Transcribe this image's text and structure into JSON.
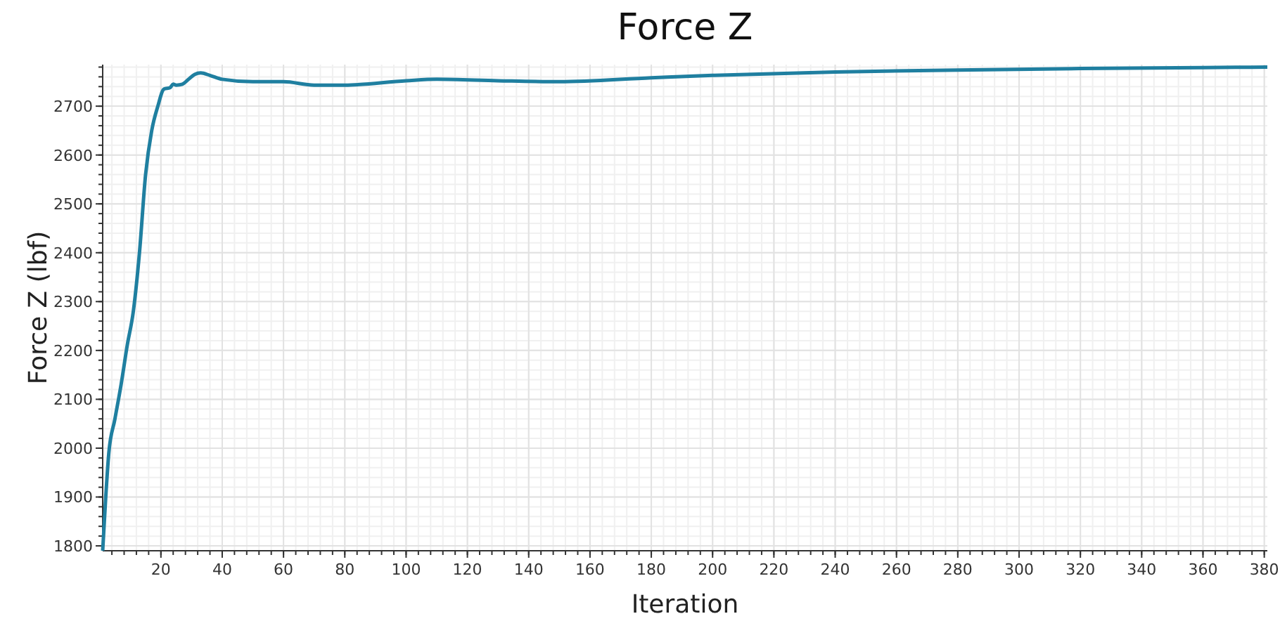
{
  "chart_data": {
    "type": "line",
    "title": "Force Z",
    "xlabel": "Iteration",
    "ylabel": "Force Z (lbf)",
    "xlim": [
      1,
      381
    ],
    "ylim": [
      1790,
      2785
    ],
    "xticks": [
      20,
      40,
      60,
      80,
      100,
      120,
      140,
      160,
      180,
      200,
      220,
      240,
      260,
      280,
      300,
      320,
      340,
      360,
      380
    ],
    "yticks": [
      1800,
      1900,
      2000,
      2100,
      2200,
      2300,
      2400,
      2500,
      2600,
      2700
    ],
    "grid": true,
    "series": [
      {
        "color": "#1f7fa0",
        "x": [
          1,
          2,
          3,
          5,
          7,
          9,
          11,
          13,
          15,
          17,
          19,
          21,
          23,
          24,
          25,
          27,
          29,
          31,
          33,
          36,
          40,
          50,
          60,
          70,
          80,
          100,
          110,
          130,
          150,
          180,
          200,
          240,
          280,
          320,
          360,
          381
        ],
        "values": [
          1790,
          1900,
          1990,
          2060,
          2130,
          2210,
          2280,
          2400,
          2560,
          2650,
          2700,
          2735,
          2738,
          2745,
          2743,
          2745,
          2755,
          2765,
          2768,
          2763,
          2755,
          2750,
          2750,
          2743,
          2743,
          2752,
          2755,
          2752,
          2750,
          2758,
          2763,
          2770,
          2774,
          2777,
          2779,
          2780
        ]
      }
    ]
  }
}
